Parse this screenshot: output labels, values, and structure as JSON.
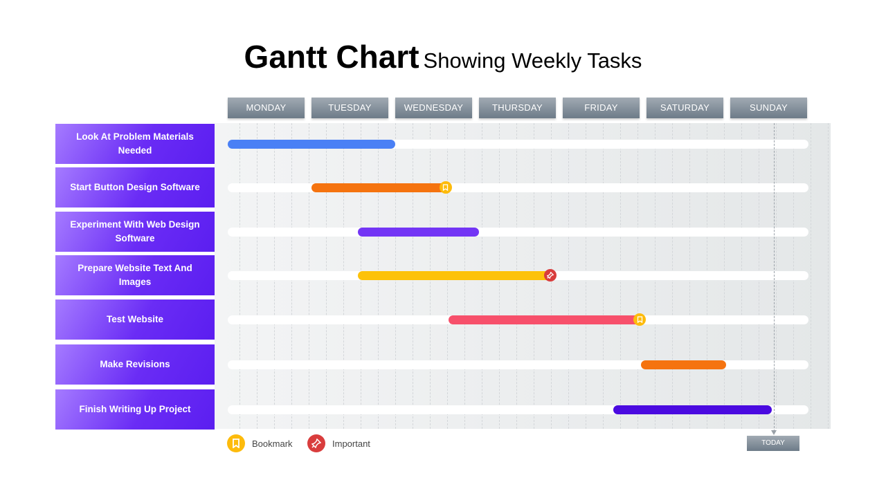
{
  "title": {
    "main": "Gantt Chart",
    "sub": "Showing Weekly Tasks"
  },
  "chart_data": {
    "type": "gantt",
    "days": [
      "MONDAY",
      "TUESDAY",
      "WEDNESDAY",
      "THURSDAY",
      "FRIDAY",
      "SATURDAY",
      "SUNDAY"
    ],
    "tasks": [
      {
        "label": "Look At Problem Materials Needed",
        "start": 0,
        "end": 2.0,
        "color": "#4a80f5",
        "marker": null
      },
      {
        "label": "Start Button Design Software",
        "start": 1.0,
        "end": 2.6,
        "color": "#f5730f",
        "marker": "bookmark"
      },
      {
        "label": "Experiment With Web Design Software",
        "start": 1.55,
        "end": 3.0,
        "color": "#7335f5",
        "marker": null
      },
      {
        "label": "Prepare Website Text And Images",
        "start": 1.55,
        "end": 3.85,
        "color": "#fdc20a",
        "marker": "important"
      },
      {
        "label": "Test Website",
        "start": 2.64,
        "end": 4.92,
        "color": "#f7506b",
        "marker": "bookmark"
      },
      {
        "label": "Make Revisions",
        "start": 4.93,
        "end": 5.95,
        "color": "#f5730f",
        "marker": null
      },
      {
        "label": "Finish Writing Up Project",
        "start": 4.6,
        "end": 6.5,
        "color": "#4a0ae0",
        "marker": null
      }
    ],
    "today": 6.52
  },
  "legend": {
    "bookmark": "Bookmark",
    "important": "Important",
    "bookmark_color": "#fdbb0c",
    "important_color": "#d93d3d"
  },
  "today_label": "TODAY"
}
